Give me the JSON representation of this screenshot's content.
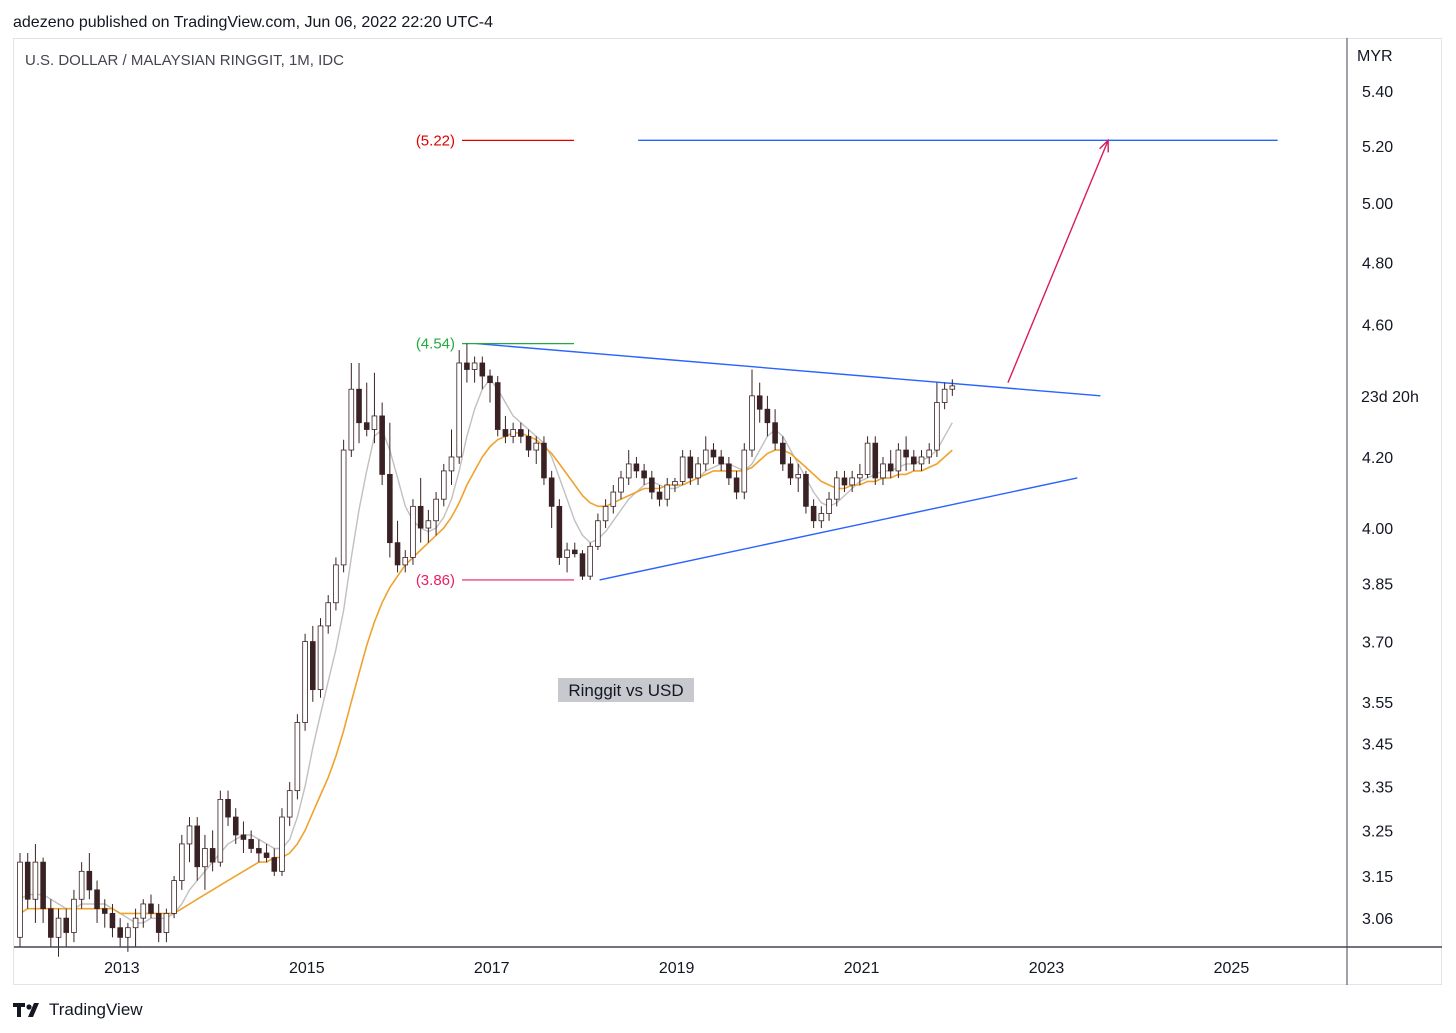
{
  "header": {
    "published_by": "adezeno published on TradingView.com, Jun 06, 2022 22:20 UTC-4",
    "symbol_line": "U.S. DOLLAR / MALAYSIAN RINGGIT, 1M, IDC"
  },
  "footer": {
    "brand": "TradingView"
  },
  "colors": {
    "up_body": "#ffffff",
    "down_body": "#3a2224",
    "candle_outline": "#3a2224",
    "ma_fast": "#c0c0c0",
    "ma_slow": "#f0a22e",
    "trendline": "#2962ff",
    "level_high": "#22ab3e",
    "level_low": "#e91e63",
    "level_target": "#e00000",
    "arrow": "#d81b60"
  },
  "chart_data": {
    "type": "candlestick",
    "currency_label": "MYR",
    "countdown_label": "23d 20h",
    "y_scale": "log",
    "ylim": [
      3.0,
      5.6
    ],
    "y_ticks": [
      "5.40",
      "5.20",
      "5.00",
      "4.80",
      "4.60",
      "4.20",
      "4.00",
      "3.85",
      "3.70",
      "3.55",
      "3.45",
      "3.35",
      "3.25",
      "3.15",
      "3.06"
    ],
    "x_ticks": [
      "2013",
      "2015",
      "2017",
      "2019",
      "2021",
      "2023",
      "2025"
    ],
    "xlim": [
      "2011-11",
      "2026-04"
    ],
    "x_tick_dates": [
      "2013-01",
      "2015-01",
      "2017-01",
      "2019-01",
      "2021-01",
      "2023-01",
      "2025-01"
    ],
    "annotations": {
      "levels": [
        {
          "label": "(4.54)",
          "value": 4.54,
          "color": "#22ab3e"
        },
        {
          "label": "(3.86)",
          "value": 3.86,
          "color": "#e91e63"
        },
        {
          "label": "(5.22)",
          "value": 5.22,
          "color": "#e00000"
        }
      ],
      "note": "Ringgit vs USD",
      "target_line": {
        "value": 5.22,
        "from": "2018-08",
        "to": "2025-07"
      },
      "triangle_upper": {
        "from": [
          "2016-11",
          4.54
        ],
        "to": [
          "2023-08",
          4.38
        ]
      },
      "triangle_lower": {
        "from": [
          "2018-03",
          3.86
        ],
        "to": [
          "2023-05",
          4.14
        ]
      },
      "arrow": {
        "from": [
          "2022-08",
          4.42
        ],
        "to": [
          "2023-09",
          5.22
        ]
      }
    },
    "candles_ohlc": [
      [
        3.02,
        3.2,
        3.0,
        3.18
      ],
      [
        3.18,
        3.2,
        3.08,
        3.1
      ],
      [
        3.1,
        3.22,
        3.05,
        3.18
      ],
      [
        3.18,
        3.19,
        3.05,
        3.08
      ],
      [
        3.08,
        3.1,
        3.0,
        3.02
      ],
      [
        3.02,
        3.08,
        2.98,
        3.06
      ],
      [
        3.06,
        3.08,
        3.0,
        3.03
      ],
      [
        3.03,
        3.12,
        3.01,
        3.1
      ],
      [
        3.1,
        3.18,
        3.08,
        3.16
      ],
      [
        3.16,
        3.2,
        3.1,
        3.12
      ],
      [
        3.12,
        3.14,
        3.05,
        3.08
      ],
      [
        3.08,
        3.1,
        3.04,
        3.07
      ],
      [
        3.07,
        3.09,
        3.02,
        3.04
      ],
      [
        3.04,
        3.06,
        3.0,
        3.02
      ],
      [
        3.02,
        3.05,
        2.99,
        3.04
      ],
      [
        3.04,
        3.08,
        3.0,
        3.06
      ],
      [
        3.06,
        3.1,
        3.04,
        3.09
      ],
      [
        3.09,
        3.11,
        3.06,
        3.07
      ],
      [
        3.07,
        3.09,
        3.01,
        3.03
      ],
      [
        3.03,
        3.08,
        3.01,
        3.07
      ],
      [
        3.07,
        3.15,
        3.06,
        3.14
      ],
      [
        3.14,
        3.24,
        3.12,
        3.22
      ],
      [
        3.22,
        3.28,
        3.18,
        3.26
      ],
      [
        3.26,
        3.28,
        3.14,
        3.17
      ],
      [
        3.17,
        3.24,
        3.12,
        3.21
      ],
      [
        3.21,
        3.25,
        3.16,
        3.18
      ],
      [
        3.18,
        3.34,
        3.17,
        3.32
      ],
      [
        3.32,
        3.34,
        3.26,
        3.28
      ],
      [
        3.28,
        3.3,
        3.22,
        3.24
      ],
      [
        3.24,
        3.27,
        3.2,
        3.23
      ],
      [
        3.23,
        3.25,
        3.2,
        3.21
      ],
      [
        3.21,
        3.23,
        3.18,
        3.2
      ],
      [
        3.2,
        3.22,
        3.18,
        3.19
      ],
      [
        3.19,
        3.21,
        3.15,
        3.16
      ],
      [
        3.16,
        3.3,
        3.15,
        3.28
      ],
      [
        3.28,
        3.36,
        3.26,
        3.34
      ],
      [
        3.34,
        3.52,
        3.32,
        3.5
      ],
      [
        3.5,
        3.72,
        3.48,
        3.7
      ],
      [
        3.7,
        3.74,
        3.55,
        3.58
      ],
      [
        3.58,
        3.76,
        3.56,
        3.74
      ],
      [
        3.74,
        3.82,
        3.72,
        3.8
      ],
      [
        3.8,
        3.92,
        3.78,
        3.9
      ],
      [
        3.9,
        4.25,
        3.88,
        4.22
      ],
      [
        4.22,
        4.48,
        4.2,
        4.4
      ],
      [
        4.4,
        4.48,
        4.24,
        4.3
      ],
      [
        4.3,
        4.42,
        4.26,
        4.28
      ],
      [
        4.28,
        4.45,
        4.24,
        4.32
      ],
      [
        4.32,
        4.36,
        4.12,
        4.15
      ],
      [
        4.15,
        4.3,
        3.92,
        3.96
      ],
      [
        3.96,
        4.02,
        3.88,
        3.9
      ],
      [
        3.9,
        3.94,
        3.88,
        3.92
      ],
      [
        3.92,
        4.08,
        3.9,
        4.06
      ],
      [
        4.06,
        4.14,
        3.96,
        4.0
      ],
      [
        4.0,
        4.05,
        3.96,
        4.02
      ],
      [
        4.02,
        4.1,
        3.98,
        4.08
      ],
      [
        4.08,
        4.18,
        4.06,
        4.16
      ],
      [
        4.16,
        4.28,
        4.12,
        4.2
      ],
      [
        4.2,
        4.52,
        4.18,
        4.48
      ],
      [
        4.48,
        4.54,
        4.42,
        4.46
      ],
      [
        4.46,
        4.5,
        4.42,
        4.48
      ],
      [
        4.48,
        4.5,
        4.4,
        4.44
      ],
      [
        4.44,
        4.46,
        4.36,
        4.42
      ],
      [
        4.42,
        4.44,
        4.26,
        4.28
      ],
      [
        4.28,
        4.32,
        4.24,
        4.26
      ],
      [
        4.26,
        4.3,
        4.24,
        4.28
      ],
      [
        4.28,
        4.3,
        4.24,
        4.26
      ],
      [
        4.26,
        4.28,
        4.2,
        4.22
      ],
      [
        4.22,
        4.26,
        4.18,
        4.24
      ],
      [
        4.24,
        4.26,
        4.12,
        4.14
      ],
      [
        4.14,
        4.16,
        4.0,
        4.06
      ],
      [
        4.06,
        4.08,
        3.9,
        3.92
      ],
      [
        3.92,
        3.96,
        3.88,
        3.94
      ],
      [
        3.94,
        3.96,
        3.92,
        3.93
      ],
      [
        3.93,
        3.94,
        3.86,
        3.87
      ],
      [
        3.87,
        3.96,
        3.86,
        3.95
      ],
      [
        3.95,
        4.04,
        3.94,
        4.02
      ],
      [
        4.02,
        4.08,
        4.0,
        4.06
      ],
      [
        4.06,
        4.12,
        4.04,
        4.1
      ],
      [
        4.1,
        4.16,
        4.08,
        4.14
      ],
      [
        4.14,
        4.22,
        4.12,
        4.18
      ],
      [
        4.18,
        4.2,
        4.14,
        4.16
      ],
      [
        4.16,
        4.18,
        4.12,
        4.14
      ],
      [
        4.14,
        4.16,
        4.08,
        4.1
      ],
      [
        4.1,
        4.12,
        4.06,
        4.08
      ],
      [
        4.08,
        4.14,
        4.06,
        4.12
      ],
      [
        4.12,
        4.14,
        4.1,
        4.13
      ],
      [
        4.13,
        4.22,
        4.12,
        4.2
      ],
      [
        4.2,
        4.22,
        4.12,
        4.14
      ],
      [
        4.14,
        4.2,
        4.12,
        4.18
      ],
      [
        4.18,
        4.26,
        4.16,
        4.22
      ],
      [
        4.22,
        4.24,
        4.18,
        4.2
      ],
      [
        4.2,
        4.22,
        4.16,
        4.18
      ],
      [
        4.18,
        4.2,
        4.12,
        4.14
      ],
      [
        4.14,
        4.16,
        4.08,
        4.1
      ],
      [
        4.1,
        4.24,
        4.08,
        4.22
      ],
      [
        4.22,
        4.46,
        4.2,
        4.38
      ],
      [
        4.38,
        4.42,
        4.3,
        4.34
      ],
      [
        4.34,
        4.38,
        4.26,
        4.3
      ],
      [
        4.3,
        4.34,
        4.22,
        4.24
      ],
      [
        4.24,
        4.26,
        4.16,
        4.18
      ],
      [
        4.18,
        4.2,
        4.12,
        4.14
      ],
      [
        4.14,
        4.18,
        4.1,
        4.15
      ],
      [
        4.15,
        4.16,
        4.04,
        4.06
      ],
      [
        4.06,
        4.08,
        4.0,
        4.02
      ],
      [
        4.02,
        4.06,
        4.0,
        4.04
      ],
      [
        4.04,
        4.1,
        4.02,
        4.08
      ],
      [
        4.08,
        4.16,
        4.06,
        4.14
      ],
      [
        4.14,
        4.16,
        4.1,
        4.12
      ],
      [
        4.12,
        4.16,
        4.1,
        4.14
      ],
      [
        4.14,
        4.18,
        4.12,
        4.15
      ],
      [
        4.15,
        4.26,
        4.14,
        4.24
      ],
      [
        4.24,
        4.26,
        4.12,
        4.14
      ],
      [
        4.14,
        4.2,
        4.12,
        4.18
      ],
      [
        4.18,
        4.22,
        4.14,
        4.16
      ],
      [
        4.16,
        4.24,
        4.14,
        4.22
      ],
      [
        4.22,
        4.26,
        4.16,
        4.2
      ],
      [
        4.2,
        4.22,
        4.16,
        4.18
      ],
      [
        4.18,
        4.22,
        4.16,
        4.2
      ],
      [
        4.2,
        4.24,
        4.18,
        4.22
      ],
      [
        4.22,
        4.42,
        4.2,
        4.36
      ],
      [
        4.36,
        4.42,
        4.34,
        4.4
      ],
      [
        4.4,
        4.43,
        4.38,
        4.41
      ]
    ],
    "ma_fast": [
      3.1,
      3.11,
      3.11,
      3.11,
      3.1,
      3.09,
      3.08,
      3.08,
      3.09,
      3.09,
      3.09,
      3.09,
      3.08,
      3.07,
      3.06,
      3.05,
      3.05,
      3.06,
      3.06,
      3.06,
      3.07,
      3.09,
      3.12,
      3.14,
      3.16,
      3.18,
      3.2,
      3.22,
      3.23,
      3.24,
      3.24,
      3.23,
      3.22,
      3.21,
      3.21,
      3.23,
      3.28,
      3.35,
      3.44,
      3.52,
      3.6,
      3.68,
      3.78,
      3.92,
      4.05,
      4.16,
      4.26,
      4.28,
      4.22,
      4.14,
      4.06,
      4.02,
      4.0,
      3.99,
      4.0,
      4.03,
      4.08,
      4.16,
      4.26,
      4.34,
      4.4,
      4.43,
      4.4,
      4.36,
      4.32,
      4.3,
      4.28,
      4.26,
      4.24,
      4.2,
      4.14,
      4.08,
      4.02,
      3.98,
      3.96,
      3.97,
      3.99,
      4.02,
      4.05,
      4.08,
      4.1,
      4.12,
      4.13,
      4.12,
      4.11,
      4.11,
      4.12,
      4.13,
      4.14,
      4.16,
      4.17,
      4.18,
      4.18,
      4.17,
      4.16,
      4.18,
      4.22,
      4.26,
      4.28,
      4.26,
      4.22,
      4.18,
      4.14,
      4.1,
      4.07,
      4.06,
      4.07,
      4.09,
      4.11,
      4.13,
      4.14,
      4.15,
      4.16,
      4.16,
      4.17,
      4.18,
      4.18,
      4.19,
      4.2,
      4.22,
      4.26,
      4.3
    ],
    "ma_slow": [
      3.07,
      3.08,
      3.08,
      3.08,
      3.08,
      3.08,
      3.08,
      3.08,
      3.08,
      3.08,
      3.08,
      3.08,
      3.08,
      3.07,
      3.07,
      3.07,
      3.07,
      3.07,
      3.07,
      3.07,
      3.07,
      3.08,
      3.09,
      3.1,
      3.11,
      3.12,
      3.13,
      3.14,
      3.15,
      3.16,
      3.17,
      3.18,
      3.18,
      3.19,
      3.19,
      3.2,
      3.22,
      3.25,
      3.29,
      3.33,
      3.37,
      3.42,
      3.48,
      3.55,
      3.62,
      3.69,
      3.75,
      3.8,
      3.84,
      3.87,
      3.9,
      3.92,
      3.94,
      3.96,
      3.98,
      4.0,
      4.03,
      4.07,
      4.12,
      4.16,
      4.2,
      4.23,
      4.25,
      4.26,
      4.27,
      4.27,
      4.26,
      4.25,
      4.23,
      4.21,
      4.18,
      4.15,
      4.12,
      4.09,
      4.07,
      4.06,
      4.06,
      4.07,
      4.08,
      4.09,
      4.1,
      4.11,
      4.11,
      4.11,
      4.12,
      4.12,
      4.12,
      4.13,
      4.14,
      4.15,
      4.16,
      4.16,
      4.16,
      4.16,
      4.16,
      4.17,
      4.19,
      4.21,
      4.22,
      4.22,
      4.21,
      4.19,
      4.17,
      4.15,
      4.13,
      4.12,
      4.11,
      4.11,
      4.12,
      4.12,
      4.13,
      4.13,
      4.14,
      4.14,
      4.15,
      4.15,
      4.16,
      4.16,
      4.17,
      4.18,
      4.2,
      4.22
    ]
  }
}
